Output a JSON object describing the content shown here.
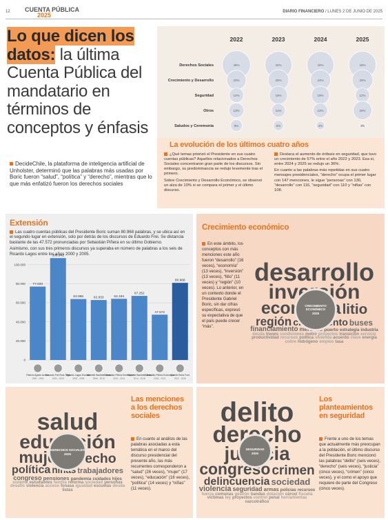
{
  "header": {
    "page": "12",
    "section": "CUENTA PÚBLICA",
    "year": "2025",
    "paper": "DIARIO FINANCIERO",
    "date": "/ LUNES 2 DE JUNIO DE 2025"
  },
  "headline": {
    "highlight": "Lo que dicen los datos:",
    "rest": "la última Cuenta Pública del mandatario en términos de conceptos y énfasis"
  },
  "intro": "DecideChile, la plataforma de inteligencia artificial de Unholster, determinó que las palabras más usadas por Boric fueron “salud”, “política” y “derecho”, mientras que lo que más enfatizó fueron los derechos sociales",
  "bubble_chart": {
    "type": "bubble",
    "color": "#d5dbe6",
    "categories": [
      "2022",
      "2023",
      "2024",
      "2025"
    ],
    "series": [
      {
        "name": "Derechos Sociales",
        "values": [
          46,
          42,
          42,
          43
        ],
        "value_labels": [
          "46%",
          "42%",
          "42%",
          "43%"
        ]
      },
      {
        "name": "Crecimiento y Desarrollo",
        "values": [
          22,
          25,
          24,
          25
        ],
        "value_labels": [
          "22%",
          "25%",
          "24%",
          "25%"
        ]
      },
      {
        "name": "Seguridad",
        "values": [
          12,
          19,
          19,
          12
        ],
        "value_labels": [
          "12%",
          "19%",
          "19%",
          "12%"
        ]
      },
      {
        "name": "Otros",
        "values": [
          13,
          11,
          12,
          20
        ],
        "value_labels": [
          "13%",
          "11%",
          "12%",
          "20%"
        ]
      },
      {
        "name": "Saludos y Ceremonia",
        "values": [
          8,
          6,
          4,
          1
        ],
        "value_labels": [
          "8%",
          "6%",
          "4%",
          "1%"
        ]
      }
    ]
  },
  "evolution": {
    "title": "La evolución de los últimos cuatro años",
    "columns": [
      [
        "¿Qué temas priorizó el Presidente en sus cuatro cuentas públicas? Aquellos relacionados a Derechos Sociales concentraron gran parte de los discursos. Sin embargo, su predominancia se redujo levemente tras el primero.",
        "Sobre Crecimiento y Desarrollo Económico, se observó un alza de 10% si se compara el primer y el último discurso."
      ],
      [
        "Destaca el aumento de énfasis en seguridad, que tuvo un crecimiento de 57% entre el año 2022 y 2023. Esa sí, entre 2024 y 2025 se redujo un 36%.",
        "En cuanto a las palabras más repetidas en sus cuatro mensajes presidenciales, “derecho” ocupa el primer lugar con 147 menciones, le sigue “personas” con 130, “desarrollo” con 116, “seguridad” con 110 y “niñas” con 108."
      ]
    ]
  },
  "extension": {
    "title": "Extensión",
    "paragraphs": [
      "Las cuatro cuentas públicas del Presidente Boric suman 80.968 palabras, y se ubica así en el segundo lugar en extensión, solo por detrás de los discursos de Eduardo Frei. Se distancia bastante de las 47.572 pronunciadas por Sebastián Piñera en su último Gobierno.",
      "Asimismo, con sus tres primeros discursos ya superaba en número de palabras a los seis de Ricardo Lagos entre los años 2000 y 2005."
    ],
    "chart": {
      "type": "bar",
      "categories": [
        "Patricio Aylwin Azócar",
        "Eduardo Frei Ruiz-Tagle",
        "Ricardo Lagos Escobar",
        "Michelle Bachelet Jeria",
        "Sebastián Piñera Echenique",
        "Michelle Bachelet Jeria",
        "Sebastián Piñera Echenique",
        "Gabriel Boric Font"
      ],
      "periods": [
        "1990 - 1994",
        "1994 - 2000",
        "2000 - 2006",
        "2006 - 2010",
        "2010 - 2014",
        "2014 - 2018",
        "2018 - 2022",
        "2022 - 2026"
      ],
      "values": [
        77033,
        106942,
        63966,
        62933,
        64194,
        67252,
        47572,
        80968
      ],
      "value_labels": [
        "77.033",
        "106.942",
        "63.966",
        "62.933",
        "64.194",
        "67.252",
        "47.572",
        "80.968"
      ],
      "colors": [
        "#4a86c8",
        "#4a86c8",
        "#4a86c8",
        "#4a86c8",
        "#4a86c8",
        "#4a86c8",
        "#4a86c8",
        "#2a5c9e"
      ],
      "ylim": [
        0,
        110000
      ],
      "yticks": [
        0,
        {
          "value": 20000,
          "label": "20.000"
        },
        {
          "value": 40000,
          "label": "40.000"
        },
        {
          "value": 60000,
          "label": "60.000"
        },
        {
          "value": 80000,
          "label": "80.000"
        },
        {
          "value": 100000,
          "label": "100.000"
        }
      ],
      "grid": true
    }
  },
  "crecimiento": {
    "title": "Crecimiento económico",
    "text": "En este ámbito, los conceptos con más menciones este año fueron “desarrollo” (16 veces), “economía” (13 veces), “inversión” (13 veces), “litio” (11 veces) y “región” (10 veces). Lo anterior, en un contexto donde el Presidente Gabriel Boric, sin dar cifras específicas, expresó su expectativa de que el país puede crecer “más”.",
    "cloud": {
      "label": "CRECIMIENTO ECONÓMICO",
      "year": "2025",
      "words": [
        "desarrollo",
        "inversión",
        "economía",
        "litio",
        "región",
        "crecimiento",
        "buses",
        "financiamiento",
        "mercado",
        "puerto",
        "estrategia",
        "industria",
        "deuda",
        "trenes",
        "condiciones",
        "metro",
        "proyectos",
        "transición",
        "servicio",
        "productividad",
        "recursos",
        "política",
        "vivienda",
        "acuerdo",
        "clave",
        "energía",
        "cobre",
        "hidrógeno",
        "empleo",
        "tasa"
      ]
    }
  },
  "derechos": {
    "title": "Las menciones a los derechos sociales",
    "text": "En cuanto al análisis de las palabras asociadas a esta temática en el marco del discurso presidencial del presente año, las más recurrentes corresponderon a “salud” (26 veces), “mujer” (17 veces), “educación” (16 veces), “política” (14 veces) y “niñas” (11 veces).",
    "cloud": {
      "label": "DERECHOS SOCIALES",
      "year": "2025",
      "words": [
        "salud",
        "educación",
        "mujer",
        "derecho",
        "política",
        "niñas",
        "trabajadores",
        "congreso",
        "pensiones",
        "pandemia",
        "cuidados",
        "hijos",
        "sistema",
        "estudiantes",
        "familia",
        "reforma",
        "sociedad",
        "personas",
        "desafío",
        "violencia",
        "acceso",
        "fonasa",
        "igualdad",
        "escuelas",
        "deuda",
        "listas"
      ]
    }
  },
  "seguridad": {
    "title": "Los planteamientos en seguridad",
    "text": "Frente a uno de los temas que actualmente más preocupan a la población, el último discurso del Presidente Boric mencionó las palabras “delito” (seis veces), “derecho” (seis veces), “justicia” (cinco veces), “crimen” (cinco veces), y el como el apoyo que requiere de parte del Congreso (cinco veces).",
    "cloud": {
      "label": "SEGURIDAD",
      "year": "2025",
      "words": [
        "delito",
        "derecho",
        "justicia",
        "congreso",
        "crimen",
        "delincuencia",
        "sociedad",
        "violencia",
        "seguridad",
        "armas",
        "policías",
        "recursos",
        "fuerza",
        "comunas",
        "gestión",
        "bandas",
        "dotación",
        "cárcel",
        "fiscalía",
        "víctimas",
        "ley",
        "proyectos",
        "control",
        "penal",
        "herramientas",
        "narcotráfico"
      ]
    }
  }
}
